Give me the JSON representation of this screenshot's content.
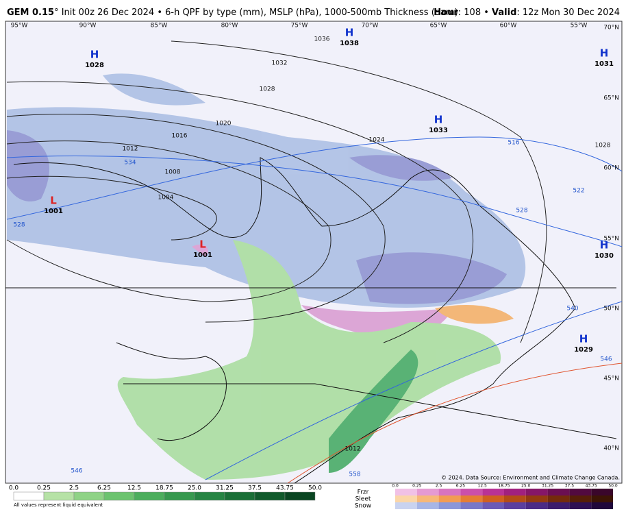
{
  "header": {
    "model": "GEM 0.15",
    "init": "° Init 00z 26 Dec 2024 • 6-h QPF by type (mm), MSLP (hPa), 1000-500mb Thickness (dam)",
    "hour_label": "Hour",
    "hour": ": 108 •",
    "valid_label": "Valid",
    "valid": ": 12z Mon 30 Dec 2024"
  },
  "map": {
    "longitudes": [
      "95°W",
      "90°W",
      "85°W",
      "80°W",
      "75°W",
      "70°W",
      "65°W",
      "60°W",
      "55°W"
    ],
    "latitudes": [
      "70°N",
      "65°N",
      "60°N",
      "55°N",
      "50°N",
      "45°N",
      "40°N"
    ],
    "centers": [
      {
        "letter": "H",
        "pressure": "1028"
      },
      {
        "letter": "H",
        "pressure": "1038"
      },
      {
        "letter": "H",
        "pressure": "1031"
      },
      {
        "letter": "H",
        "pressure": "1033"
      },
      {
        "letter": "H",
        "pressure": "1030"
      },
      {
        "letter": "H",
        "pressure": "1029"
      },
      {
        "letter": "L",
        "pressure": "1001"
      },
      {
        "letter": "L",
        "pressure": "1001"
      }
    ],
    "isobar_labels": [
      "1036",
      "1032",
      "1028",
      "1024",
      "1020",
      "1016",
      "1012",
      "1008",
      "1004",
      "1028",
      "1012"
    ],
    "thickness_labels": [
      "534",
      "528",
      "516",
      "522",
      "528",
      "540",
      "546",
      "558",
      "546"
    ],
    "credit": "© 2024. Data Source: Environment and Climate Change Canada."
  },
  "legend": {
    "rain_ticks": [
      "0.0",
      "0.25",
      "2.5",
      "6.25",
      "12.5",
      "18.75",
      "25.0",
      "31.25",
      "37.5",
      "43.75",
      "50.0"
    ],
    "note": "All values represent liquid equivalent",
    "types": [
      "Frzr",
      "Sleet",
      "Snow"
    ],
    "mix_ticks": [
      "0.0",
      "0.25",
      "2.5",
      "6.25",
      "12.5",
      "18.75",
      "25.0",
      "31.25",
      "37.5",
      "43.75",
      "50.0"
    ]
  }
}
